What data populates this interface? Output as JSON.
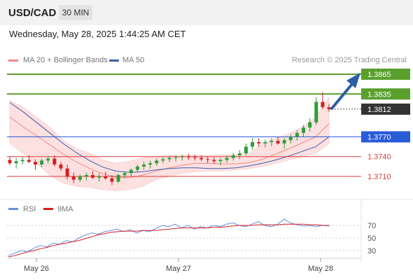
{
  "header": {
    "symbol": "USD/CAD",
    "timeframe": "30 MIN"
  },
  "timestamp": "Wednesday, May 28, 2025 1:44:25 AM CET",
  "legend": {
    "ma20_label": "MA 20 + Bollinger Bands",
    "ma50_label": "MA 50",
    "attribution": "Research © 2025 Trading Central",
    "rsi_label": "RSI",
    "rsi_ma_label": "9MA"
  },
  "colors": {
    "candle_up": "#2e9e3a",
    "candle_down": "#d62020",
    "ma20": "#f08a8a",
    "ma50": "#3b5ea8",
    "band_fill": "#fde0e0",
    "target": "#5aa02c",
    "pivot": "#2a5bd7",
    "support": "#e03a3a",
    "arrow": "#2c5ea8",
    "rsi": "#6b8fe0",
    "rsi_ma": "#d62020"
  },
  "chart_data": [
    {
      "type": "candlestick",
      "title": "USD/CAD 30 MIN",
      "x_ticks": [
        "May 26",
        "May 27",
        "May 28"
      ],
      "ylim": [
        1.3692,
        1.3882
      ],
      "last_price": 1.3812,
      "levels": [
        {
          "label": "1.3865",
          "value": 1.3865,
          "kind": "target"
        },
        {
          "label": "1.3835",
          "value": 1.3835,
          "kind": "target"
        },
        {
          "label": "1.3770",
          "value": 1.377,
          "kind": "pivot"
        },
        {
          "label": "1.3740",
          "value": 1.374,
          "kind": "support"
        },
        {
          "label": "1.3710",
          "value": 1.371,
          "kind": "support"
        }
      ],
      "series": [
        {
          "name": "MA 20 + Bollinger Bands",
          "ma": [
            1.38,
            1.3785,
            1.3772,
            1.3758,
            1.3744,
            1.3732,
            1.3722,
            1.3714,
            1.3708,
            1.3708,
            1.3712,
            1.3718,
            1.3723,
            1.3727,
            1.373,
            1.373,
            1.3729,
            1.3729,
            1.3731,
            1.3736,
            1.3744,
            1.3752,
            1.3761,
            1.377,
            1.379
          ],
          "upper": [
            1.3825,
            1.3815,
            1.38,
            1.3785,
            1.3765,
            1.3752,
            1.3745,
            1.3735,
            1.373,
            1.3733,
            1.3738,
            1.374,
            1.3742,
            1.3742,
            1.3742,
            1.3742,
            1.3743,
            1.3743,
            1.3745,
            1.376,
            1.3768,
            1.3775,
            1.3785,
            1.38,
            1.383
          ],
          "lower": [
            1.376,
            1.3745,
            1.373,
            1.3712,
            1.37,
            1.3695,
            1.3693,
            1.369,
            1.3688,
            1.369,
            1.3695,
            1.3705,
            1.371,
            1.3715,
            1.3717,
            1.3718,
            1.3718,
            1.372,
            1.3722,
            1.3725,
            1.373,
            1.3735,
            1.374,
            1.3745,
            1.376
          ]
        },
        {
          "name": "MA 50",
          "ma": [
            1.3822,
            1.3808,
            1.3792,
            1.3776,
            1.376,
            1.3746,
            1.3734,
            1.3724,
            1.3718,
            1.3716,
            1.3717,
            1.372,
            1.3722,
            1.3723,
            1.3723,
            1.3722,
            1.3722,
            1.3723,
            1.3726,
            1.373,
            1.3735,
            1.3741,
            1.3748,
            1.3755,
            1.377
          ]
        }
      ],
      "candles": [
        [
          1.3735,
          1.374,
          1.3727,
          1.373
        ],
        [
          1.373,
          1.3738,
          1.3722,
          1.3733
        ],
        [
          1.3733,
          1.374,
          1.3728,
          1.3735
        ],
        [
          1.3735,
          1.3742,
          1.373,
          1.3732
        ],
        [
          1.3732,
          1.3736,
          1.372,
          1.3728
        ],
        [
          1.3728,
          1.3737,
          1.3724,
          1.3734
        ],
        [
          1.3734,
          1.3741,
          1.3729,
          1.3737
        ],
        [
          1.3737,
          1.3742,
          1.3725,
          1.3728
        ],
        [
          1.3728,
          1.3732,
          1.3718,
          1.3722
        ],
        [
          1.3722,
          1.3728,
          1.3705,
          1.371
        ],
        [
          1.371,
          1.3716,
          1.37,
          1.3705
        ],
        [
          1.3705,
          1.3713,
          1.3701,
          1.371
        ],
        [
          1.371,
          1.3716,
          1.3704,
          1.3712
        ],
        [
          1.3712,
          1.3718,
          1.3706,
          1.3708
        ],
        [
          1.3708,
          1.3715,
          1.3702,
          1.371
        ],
        [
          1.371,
          1.3717,
          1.3705,
          1.3707
        ],
        [
          1.3707,
          1.3712,
          1.3697,
          1.3702
        ],
        [
          1.3702,
          1.3714,
          1.37,
          1.3712
        ],
        [
          1.3712,
          1.3718,
          1.3707,
          1.3715
        ],
        [
          1.3715,
          1.3722,
          1.371,
          1.372
        ],
        [
          1.372,
          1.3728,
          1.3716,
          1.3725
        ],
        [
          1.3725,
          1.3732,
          1.372,
          1.3728
        ],
        [
          1.3728,
          1.3734,
          1.3722,
          1.373
        ],
        [
          1.373,
          1.3737,
          1.3726,
          1.3734
        ],
        [
          1.3734,
          1.374,
          1.373,
          1.3736
        ],
        [
          1.3736,
          1.3741,
          1.3732,
          1.3738
        ],
        [
          1.3738,
          1.3742,
          1.3733,
          1.3739
        ],
        [
          1.3739,
          1.3743,
          1.3734,
          1.374
        ],
        [
          1.374,
          1.3744,
          1.3735,
          1.3739
        ],
        [
          1.3739,
          1.3743,
          1.3734,
          1.3738
        ],
        [
          1.3738,
          1.3742,
          1.3733,
          1.3736
        ],
        [
          1.3736,
          1.3741,
          1.373,
          1.3735
        ],
        [
          1.3735,
          1.3739,
          1.3729,
          1.3733
        ],
        [
          1.3733,
          1.3738,
          1.3727,
          1.3735
        ],
        [
          1.3735,
          1.3742,
          1.3731,
          1.3738
        ],
        [
          1.3738,
          1.3746,
          1.3734,
          1.3742
        ],
        [
          1.3742,
          1.375,
          1.3736,
          1.3745
        ],
        [
          1.3745,
          1.376,
          1.3742,
          1.3755
        ],
        [
          1.3755,
          1.3768,
          1.375,
          1.3762
        ],
        [
          1.3762,
          1.3768,
          1.3755,
          1.376
        ],
        [
          1.376,
          1.3766,
          1.3754,
          1.3762
        ],
        [
          1.3762,
          1.3768,
          1.3756,
          1.3764
        ],
        [
          1.3764,
          1.377,
          1.3758,
          1.376
        ],
        [
          1.376,
          1.3768,
          1.3752,
          1.3765
        ],
        [
          1.3765,
          1.3774,
          1.376,
          1.377
        ],
        [
          1.377,
          1.378,
          1.3764,
          1.3776
        ],
        [
          1.3776,
          1.3788,
          1.377,
          1.3784
        ],
        [
          1.3784,
          1.3798,
          1.3778,
          1.3792
        ],
        [
          1.3792,
          1.383,
          1.3788,
          1.3823
        ],
        [
          1.3823,
          1.3838,
          1.3812,
          1.3815
        ],
        [
          1.3815,
          1.382,
          1.3808,
          1.3812
        ]
      ]
    },
    {
      "type": "line",
      "title": "RSI",
      "y_ticks": [
        "70",
        "50",
        "30"
      ],
      "ylim": [
        10,
        85
      ],
      "series": [
        {
          "name": "RSI",
          "values": [
            22,
            26,
            30,
            28,
            34,
            38,
            36,
            42,
            40,
            46,
            44,
            50,
            55,
            58,
            56,
            60,
            62,
            64,
            60,
            63,
            58,
            62,
            60,
            65,
            70,
            68,
            72,
            66,
            70,
            64,
            68,
            66,
            70,
            68,
            72,
            74,
            70,
            68,
            72,
            76,
            70,
            68,
            72,
            80,
            74,
            71,
            69,
            70,
            68,
            70,
            69
          ]
        },
        {
          "name": "9MA",
          "values": [
            20,
            22,
            25,
            28,
            30,
            33,
            35,
            38,
            40,
            42,
            44,
            46,
            49,
            52,
            55,
            57,
            59,
            60,
            61,
            61,
            61,
            62,
            62,
            62,
            63,
            64,
            65,
            66,
            66,
            66,
            66,
            66,
            67,
            67,
            68,
            69,
            70,
            70,
            70,
            71,
            71,
            71,
            71,
            72,
            72,
            72,
            72,
            71,
            71,
            70,
            70
          ]
        }
      ]
    }
  ]
}
